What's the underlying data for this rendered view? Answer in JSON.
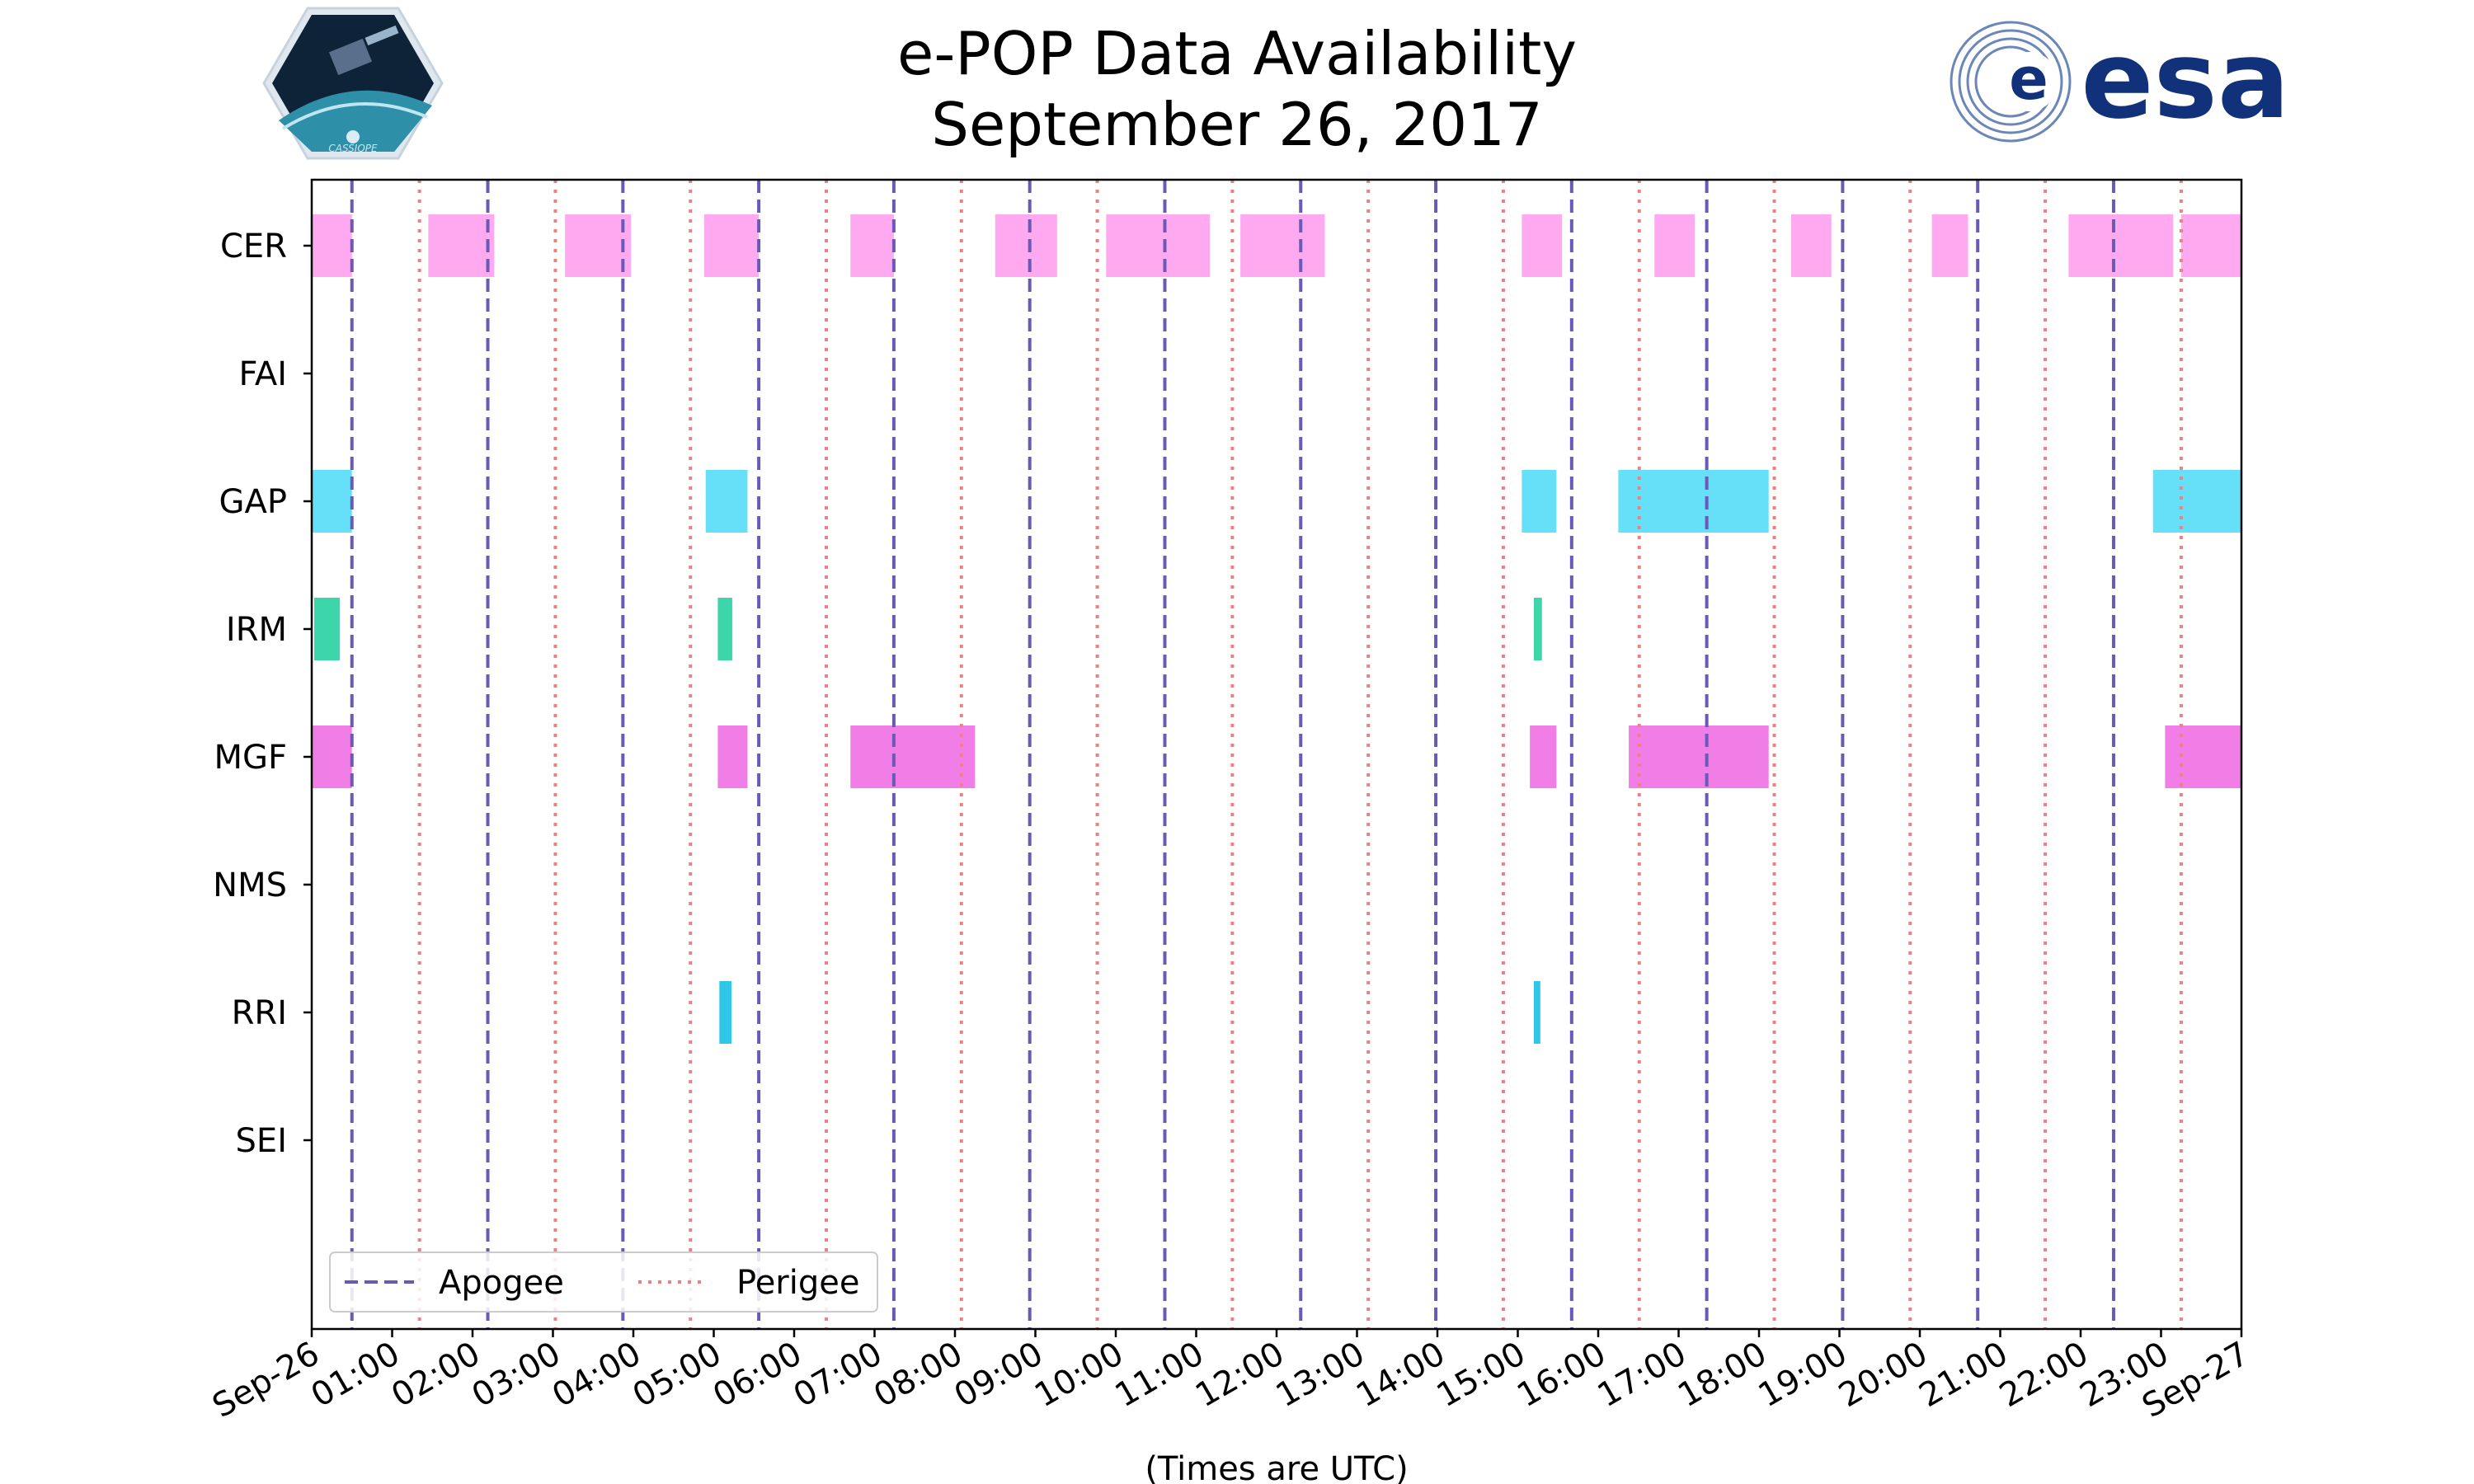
{
  "page": {
    "title_line1": "e-POP Data Availability",
    "title_line2": "September 26, 2017",
    "left_logo": "CASSIOPE mission logo",
    "left_logo_text": "CASSIOPE",
    "right_logo": "esa-logo",
    "right_logo_text": "esa"
  },
  "chart_data": {
    "type": "timeline",
    "title": "e-POP Data Availability September 26, 2017",
    "xlabel": "(Times are UTC)",
    "ylabel": "",
    "xlim_hours": [
      0,
      24
    ],
    "instruments": [
      "CER",
      "FAI",
      "GAP",
      "IRM",
      "MGF",
      "NMS",
      "RRI",
      "SEI"
    ],
    "x_tick_labels": [
      "Sep-26",
      "01:00",
      "02:00",
      "03:00",
      "04:00",
      "05:00",
      "06:00",
      "07:00",
      "08:00",
      "09:00",
      "10:00",
      "11:00",
      "12:00",
      "13:00",
      "14:00",
      "15:00",
      "16:00",
      "17:00",
      "18:00",
      "19:00",
      "20:00",
      "21:00",
      "22:00",
      "23:00",
      "Sep-27"
    ],
    "legend": [
      {
        "label": "Apogee",
        "style": "dashed",
        "color": "#6a5ab5"
      },
      {
        "label": "Perigee",
        "style": "dotted",
        "color": "#f08080"
      }
    ],
    "legend_position": "lower-left",
    "apogee_hours": [
      0.5,
      2.19,
      3.87,
      5.56,
      7.24,
      8.93,
      10.61,
      12.3,
      13.98,
      15.67,
      17.35,
      19.04,
      20.72,
      22.41
    ],
    "perigee_hours": [
      1.34,
      3.03,
      4.71,
      6.4,
      8.08,
      9.77,
      11.45,
      13.14,
      14.82,
      16.51,
      18.19,
      19.88,
      21.56,
      23.25
    ],
    "series": [
      {
        "name": "CER",
        "color": "#ffaaf0",
        "intervals": [
          [
            0,
            0.5
          ],
          [
            1.45,
            2.27
          ],
          [
            3.15,
            3.97
          ],
          [
            4.88,
            5.56
          ],
          [
            6.7,
            7.24
          ],
          [
            8.5,
            9.27
          ],
          [
            9.88,
            11.17
          ],
          [
            11.55,
            12.6
          ],
          [
            15.05,
            15.55
          ],
          [
            16.7,
            17.2
          ],
          [
            18.4,
            18.9
          ],
          [
            20.15,
            20.6
          ],
          [
            21.85,
            23.15
          ],
          [
            23.25,
            24
          ]
        ]
      },
      {
        "name": "FAI",
        "color": "#cccccc",
        "intervals": []
      },
      {
        "name": "GAP",
        "color": "#66e0f8",
        "intervals": [
          [
            0,
            0.5
          ],
          [
            4.9,
            5.42
          ],
          [
            15.05,
            15.48
          ],
          [
            16.25,
            18.12
          ],
          [
            22.9,
            24
          ]
        ]
      },
      {
        "name": "IRM",
        "color": "#3dd6aa",
        "intervals": [
          [
            0.03,
            0.35
          ],
          [
            5.05,
            5.23
          ],
          [
            15.2,
            15.3
          ]
        ]
      },
      {
        "name": "MGF",
        "color": "#f07ee6",
        "intervals": [
          [
            0,
            0.5
          ],
          [
            5.05,
            5.42
          ],
          [
            6.7,
            8.25
          ],
          [
            15.15,
            15.48
          ],
          [
            16.38,
            18.12
          ],
          [
            23.05,
            24
          ]
        ]
      },
      {
        "name": "NMS",
        "color": "#cccccc",
        "intervals": []
      },
      {
        "name": "RRI",
        "color": "#2ec7e8",
        "intervals": [
          [
            5.07,
            5.22
          ],
          [
            15.2,
            15.28
          ]
        ]
      },
      {
        "name": "SEI",
        "color": "#cccccc",
        "intervals": []
      }
    ]
  }
}
